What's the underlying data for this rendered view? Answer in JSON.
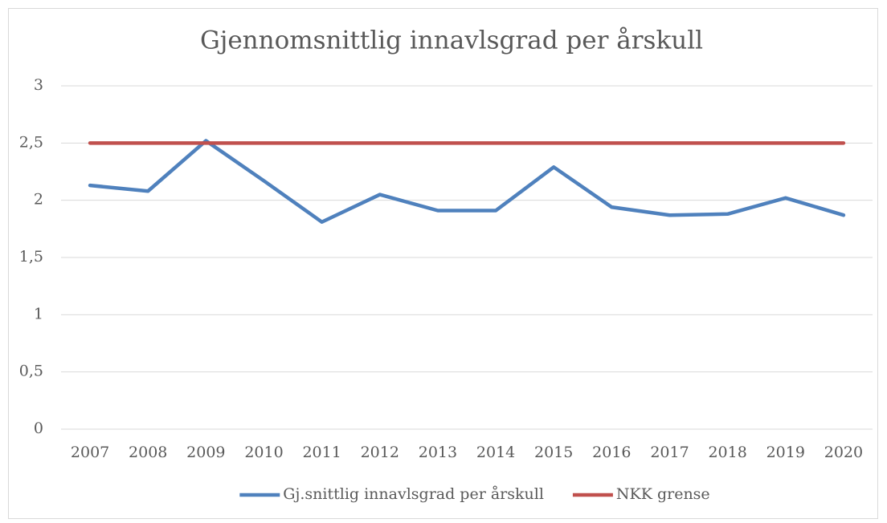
{
  "chart_data": {
    "type": "line",
    "title": "Gjennomsnittlig innavlsgrad per årskull",
    "categories": [
      "2007",
      "2008",
      "2009",
      "2010",
      "2011",
      "2012",
      "2013",
      "2014",
      "2015",
      "2016",
      "2017",
      "2018",
      "2019",
      "2020"
    ],
    "series": [
      {
        "name": "Gj.snittlig innavlsgrad per årskull",
        "color": "#4f81bd",
        "values": [
          2.13,
          2.08,
          2.52,
          2.17,
          1.81,
          2.05,
          1.91,
          1.91,
          2.29,
          1.94,
          1.87,
          1.88,
          2.02,
          1.87
        ]
      },
      {
        "name": "NKK grense",
        "color": "#c0504d",
        "values": [
          2.5,
          2.5,
          2.5,
          2.5,
          2.5,
          2.5,
          2.5,
          2.5,
          2.5,
          2.5,
          2.5,
          2.5,
          2.5,
          2.5
        ]
      }
    ],
    "ylim": [
      0,
      3
    ],
    "yticks": [
      0,
      {
        "value": 0.5,
        "label": "0,5"
      },
      1,
      {
        "value": 1.5,
        "label": "1,5"
      },
      2,
      {
        "value": 2.5,
        "label": "2,5"
      },
      3
    ],
    "grid": true,
    "legend": "bottom"
  }
}
